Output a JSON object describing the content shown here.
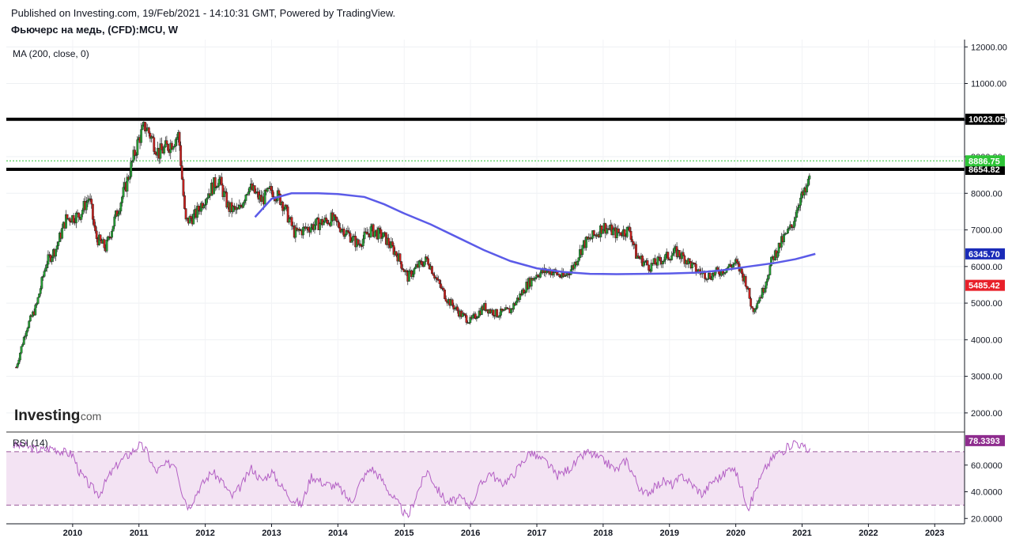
{
  "header": {
    "published": "Published on Investing.com, 19/Feb/2021 - 14:10:31 GMT, Powered by TradingView.",
    "instrument": "Фьючерс на медь, (CFD):MCU, W"
  },
  "indicators": {
    "ma_label": "MA (200, close, 0)",
    "rsi_label": "RSI (14)"
  },
  "logo": {
    "main": "Investing",
    "suffix": ".com"
  },
  "colors": {
    "up_candle": "#26a035",
    "down_candle": "#c8201e",
    "ma_line": "#5b5be8",
    "rsi_line": "#b35fc4",
    "rsi_band": "#f3e3f3",
    "level_line": "#000000",
    "last_price": "#2ec437",
    "ma_badge": "#1a2bb8",
    "low_badge": "#e8202a",
    "rsi_badge": "#8e2c8e"
  },
  "chart_data": {
    "type": "candlestick",
    "interval": "W",
    "main_axis": {
      "ylim": [
        1500,
        12200
      ],
      "ticks": [
        "2000.00",
        "3000.00",
        "4000.00",
        "5000.00",
        "6000.00",
        "7000.00",
        "8000.00",
        "9000.00",
        "10000.00",
        "11000.00",
        "12000.00"
      ]
    },
    "x_ticks": [
      "2010",
      "2011",
      "2012",
      "2013",
      "2014",
      "2015",
      "2016",
      "2017",
      "2018",
      "2019",
      "2020",
      "2021",
      "2022",
      "2023"
    ],
    "horizontal_levels": [
      {
        "value": 10023.05,
        "label": "10023.05"
      },
      {
        "value": 8654.82,
        "label": "8654.82"
      }
    ],
    "price_badges": [
      {
        "value": 8886.75,
        "label": "8886.75",
        "kind": "last"
      },
      {
        "value": 6345.7,
        "label": "6345.70",
        "kind": "ma"
      },
      {
        "value": 5485.42,
        "label": "5485.42",
        "kind": "low"
      }
    ],
    "price_path": [
      [
        2009.15,
        3250
      ],
      [
        2009.3,
        4300
      ],
      [
        2009.45,
        4900
      ],
      [
        2009.6,
        6100
      ],
      [
        2009.75,
        6500
      ],
      [
        2009.9,
        7300
      ],
      [
        2010.1,
        7400
      ],
      [
        2010.25,
        7900
      ],
      [
        2010.35,
        6800
      ],
      [
        2010.5,
        6500
      ],
      [
        2010.6,
        7100
      ],
      [
        2010.8,
        8200
      ],
      [
        2011.0,
        9500
      ],
      [
        2011.1,
        9850
      ],
      [
        2011.3,
        9100
      ],
      [
        2011.45,
        9300
      ],
      [
        2011.6,
        9600
      ],
      [
        2011.7,
        7200
      ],
      [
        2011.85,
        7400
      ],
      [
        2012.0,
        7900
      ],
      [
        2012.2,
        8400
      ],
      [
        2012.35,
        7600
      ],
      [
        2012.5,
        7500
      ],
      [
        2012.65,
        8200
      ],
      [
        2012.85,
        7800
      ],
      [
        2013.0,
        8100
      ],
      [
        2013.15,
        7800
      ],
      [
        2013.35,
        6900
      ],
      [
        2013.6,
        7100
      ],
      [
        2013.9,
        7300
      ],
      [
        2014.15,
        6900
      ],
      [
        2014.3,
        6600
      ],
      [
        2014.5,
        7000
      ],
      [
        2014.7,
        6800
      ],
      [
        2014.9,
        6300
      ],
      [
        2015.05,
        5700
      ],
      [
        2015.2,
        6000
      ],
      [
        2015.35,
        6200
      ],
      [
        2015.5,
        5600
      ],
      [
        2015.65,
        5100
      ],
      [
        2015.85,
        4700
      ],
      [
        2016.0,
        4500
      ],
      [
        2016.2,
        4900
      ],
      [
        2016.4,
        4700
      ],
      [
        2016.6,
        4800
      ],
      [
        2016.85,
        5500
      ],
      [
        2017.0,
        5800
      ],
      [
        2017.2,
        5900
      ],
      [
        2017.4,
        5700
      ],
      [
        2017.55,
        6000
      ],
      [
        2017.7,
        6600
      ],
      [
        2017.9,
        6900
      ],
      [
        2018.0,
        7100
      ],
      [
        2018.2,
        6900
      ],
      [
        2018.4,
        7000
      ],
      [
        2018.5,
        6300
      ],
      [
        2018.7,
        6000
      ],
      [
        2018.9,
        6200
      ],
      [
        2019.1,
        6400
      ],
      [
        2019.25,
        6200
      ],
      [
        2019.4,
        5900
      ],
      [
        2019.6,
        5750
      ],
      [
        2019.8,
        5900
      ],
      [
        2020.0,
        6100
      ],
      [
        2020.15,
        5600
      ],
      [
        2020.25,
        4800
      ],
      [
        2020.4,
        5300
      ],
      [
        2020.55,
        6200
      ],
      [
        2020.7,
        6700
      ],
      [
        2020.85,
        7100
      ],
      [
        2020.95,
        7800
      ],
      [
        2021.05,
        8000
      ],
      [
        2021.1,
        8300
      ],
      [
        2021.13,
        8890
      ]
    ],
    "ma200": [
      [
        2012.75,
        7350
      ],
      [
        2013.0,
        7850
      ],
      [
        2013.3,
        8000
      ],
      [
        2013.7,
        8000
      ],
      [
        2014.0,
        7980
      ],
      [
        2014.4,
        7900
      ],
      [
        2014.7,
        7700
      ],
      [
        2015.0,
        7450
      ],
      [
        2015.4,
        7150
      ],
      [
        2015.8,
        6800
      ],
      [
        2016.2,
        6450
      ],
      [
        2016.6,
        6150
      ],
      [
        2017.0,
        5950
      ],
      [
        2017.4,
        5850
      ],
      [
        2017.8,
        5800
      ],
      [
        2018.2,
        5790
      ],
      [
        2018.6,
        5800
      ],
      [
        2019.0,
        5810
      ],
      [
        2019.4,
        5830
      ],
      [
        2019.8,
        5900
      ],
      [
        2020.2,
        6000
      ],
      [
        2020.6,
        6100
      ],
      [
        2020.9,
        6200
      ],
      [
        2021.2,
        6345
      ]
    ],
    "rsi": {
      "label": "RSI (14)",
      "ylim": [
        16,
        83
      ],
      "ticks": [
        "20.0000",
        "40.0000",
        "60.0000"
      ],
      "bands": [
        30,
        70
      ],
      "last": "78.3393",
      "series": [
        [
          2009.1,
          75
        ],
        [
          2009.3,
          74
        ],
        [
          2009.5,
          71
        ],
        [
          2009.7,
          73
        ],
        [
          2009.85,
          70
        ],
        [
          2010.0,
          68
        ],
        [
          2010.1,
          55
        ],
        [
          2010.25,
          45
        ],
        [
          2010.4,
          38
        ],
        [
          2010.55,
          52
        ],
        [
          2010.7,
          62
        ],
        [
          2010.85,
          68
        ],
        [
          2011.0,
          75
        ],
        [
          2011.1,
          72
        ],
        [
          2011.25,
          55
        ],
        [
          2011.4,
          60
        ],
        [
          2011.55,
          62
        ],
        [
          2011.65,
          40
        ],
        [
          2011.75,
          28
        ],
        [
          2011.9,
          42
        ],
        [
          2012.1,
          55
        ],
        [
          2012.25,
          48
        ],
        [
          2012.4,
          36
        ],
        [
          2012.55,
          45
        ],
        [
          2012.7,
          58
        ],
        [
          2012.85,
          48
        ],
        [
          2013.0,
          55
        ],
        [
          2013.15,
          44
        ],
        [
          2013.3,
          35
        ],
        [
          2013.45,
          30
        ],
        [
          2013.6,
          52
        ],
        [
          2013.8,
          46
        ],
        [
          2014.0,
          44
        ],
        [
          2014.2,
          32
        ],
        [
          2014.35,
          48
        ],
        [
          2014.5,
          58
        ],
        [
          2014.65,
          50
        ],
        [
          2014.8,
          38
        ],
        [
          2014.95,
          28
        ],
        [
          2015.05,
          20
        ],
        [
          2015.2,
          40
        ],
        [
          2015.35,
          56
        ],
        [
          2015.5,
          42
        ],
        [
          2015.65,
          32
        ],
        [
          2015.85,
          35
        ],
        [
          2016.0,
          30
        ],
        [
          2016.15,
          45
        ],
        [
          2016.3,
          55
        ],
        [
          2016.45,
          46
        ],
        [
          2016.6,
          50
        ],
        [
          2016.75,
          60
        ],
        [
          2016.9,
          70
        ],
        [
          2017.0,
          66
        ],
        [
          2017.15,
          62
        ],
        [
          2017.3,
          52
        ],
        [
          2017.45,
          56
        ],
        [
          2017.6,
          62
        ],
        [
          2017.75,
          70
        ],
        [
          2017.9,
          66
        ],
        [
          2018.05,
          62
        ],
        [
          2018.2,
          56
        ],
        [
          2018.35,
          64
        ],
        [
          2018.5,
          48
        ],
        [
          2018.6,
          38
        ],
        [
          2018.75,
          42
        ],
        [
          2018.9,
          48
        ],
        [
          2019.05,
          45
        ],
        [
          2019.2,
          52
        ],
        [
          2019.35,
          45
        ],
        [
          2019.5,
          38
        ],
        [
          2019.65,
          48
        ],
        [
          2019.8,
          52
        ],
        [
          2019.95,
          60
        ],
        [
          2020.05,
          48
        ],
        [
          2020.15,
          34
        ],
        [
          2020.2,
          28
        ],
        [
          2020.3,
          42
        ],
        [
          2020.45,
          58
        ],
        [
          2020.6,
          68
        ],
        [
          2020.75,
          72
        ],
        [
          2020.9,
          78
        ],
        [
          2021.0,
          74
        ],
        [
          2021.1,
          70
        ],
        [
          2021.13,
          78
        ]
      ]
    }
  }
}
